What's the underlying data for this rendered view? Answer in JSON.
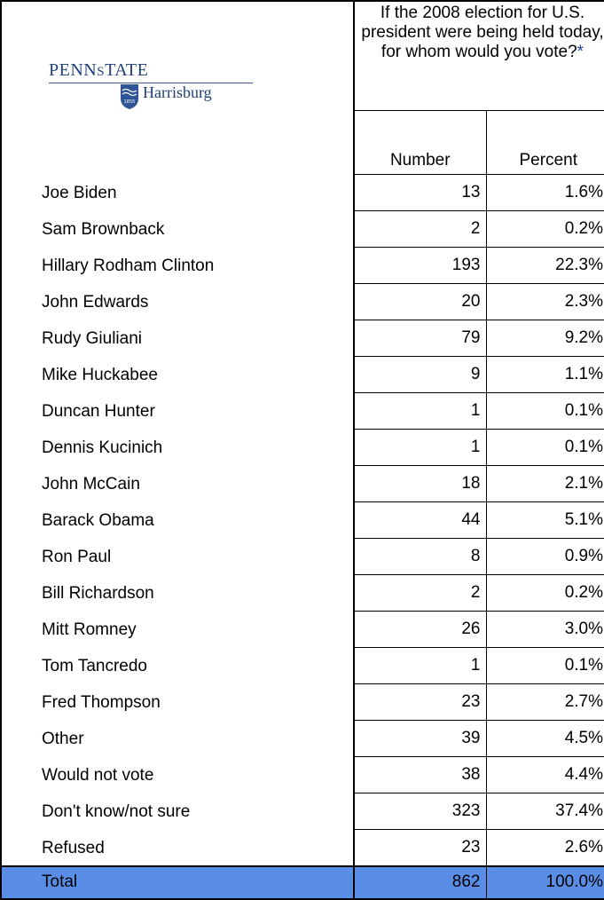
{
  "header": {
    "logo": {
      "name": "PENNSTATE",
      "campus": "Harrisburg",
      "year": "1855"
    },
    "question": "If the 2008 election for U.S. president were being held today, for whom would you vote?",
    "question_marker": "*",
    "col_number": "Number",
    "col_percent": "Percent"
  },
  "colors": {
    "total_row_bg": "#5a8ee6",
    "logo_blue": "#1f3f7a",
    "asterisk": "#1f3ea0"
  },
  "chart_data": {
    "type": "table",
    "columns": [
      "",
      "Number",
      "Percent"
    ],
    "rows": [
      {
        "name": "Joe Biden",
        "number": "13",
        "percent": "1.6%"
      },
      {
        "name": "Sam Brownback",
        "number": "2",
        "percent": "0.2%"
      },
      {
        "name": "Hillary Rodham Clinton",
        "number": "193",
        "percent": "22.3%"
      },
      {
        "name": "John Edwards",
        "number": "20",
        "percent": "2.3%"
      },
      {
        "name": "Rudy Giuliani",
        "number": "79",
        "percent": "9.2%"
      },
      {
        "name": "Mike Huckabee",
        "number": "9",
        "percent": "1.1%"
      },
      {
        "name": "Duncan Hunter",
        "number": "1",
        "percent": "0.1%"
      },
      {
        "name": "Dennis Kucinich",
        "number": "1",
        "percent": "0.1%"
      },
      {
        "name": "John McCain",
        "number": "18",
        "percent": "2.1%"
      },
      {
        "name": "Barack Obama",
        "number": "44",
        "percent": "5.1%"
      },
      {
        "name": "Ron Paul",
        "number": "8",
        "percent": "0.9%"
      },
      {
        "name": "Bill Richardson",
        "number": "2",
        "percent": "0.2%"
      },
      {
        "name": "Mitt Romney",
        "number": "26",
        "percent": "3.0%"
      },
      {
        "name": "Tom Tancredo",
        "number": "1",
        "percent": "0.1%"
      },
      {
        "name": "Fred Thompson",
        "number": "23",
        "percent": "2.7%"
      },
      {
        "name": "Other",
        "number": "39",
        "percent": "4.5%"
      },
      {
        "name": "Would not vote",
        "number": "38",
        "percent": "4.4%"
      },
      {
        "name": "Don't know/not sure",
        "number": "323",
        "percent": "37.4%"
      },
      {
        "name": "Refused",
        "number": "23",
        "percent": "2.6%"
      }
    ],
    "total": {
      "name": "Total",
      "number": "862",
      "percent": "100.0%"
    }
  }
}
